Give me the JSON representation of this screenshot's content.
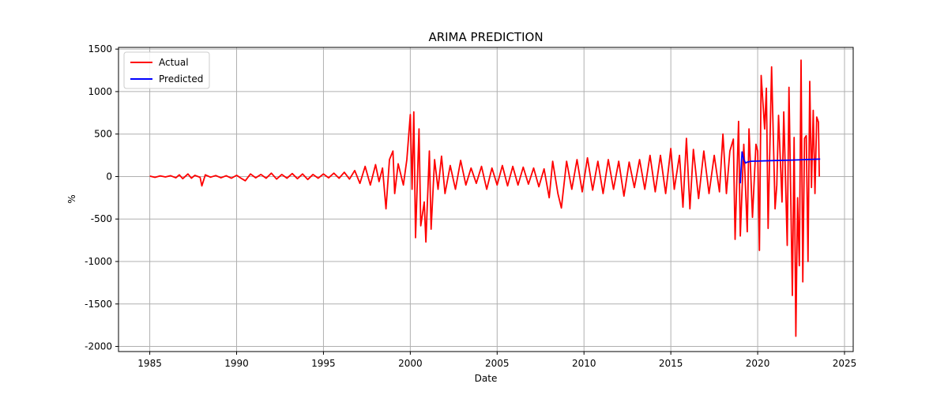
{
  "chart_data": {
    "type": "line",
    "title": "ARIMA PREDICTION",
    "xlabel": "Date",
    "ylabel": "%",
    "xlim": [
      1983.2,
      2025.5
    ],
    "ylim": [
      -2060,
      1520
    ],
    "x_ticks": [
      1985,
      1990,
      1995,
      2000,
      2005,
      2010,
      2015,
      2020,
      2025
    ],
    "y_ticks": [
      -2000,
      -1500,
      -1000,
      -500,
      0,
      500,
      1000,
      1500
    ],
    "grid": true,
    "legend_position": "top-left",
    "series": [
      {
        "name": "Actual",
        "color": "#ff0000",
        "points": [
          [
            1985.0,
            5
          ],
          [
            1985.3,
            -10
          ],
          [
            1985.6,
            8
          ],
          [
            1985.9,
            -5
          ],
          [
            1986.2,
            10
          ],
          [
            1986.5,
            -15
          ],
          [
            1986.7,
            20
          ],
          [
            1986.9,
            -25
          ],
          [
            1987.2,
            30
          ],
          [
            1987.4,
            -20
          ],
          [
            1987.6,
            15
          ],
          [
            1987.9,
            -10
          ],
          [
            1988.0,
            -110
          ],
          [
            1988.2,
            20
          ],
          [
            1988.5,
            -8
          ],
          [
            1988.8,
            12
          ],
          [
            1989.1,
            -15
          ],
          [
            1989.4,
            10
          ],
          [
            1989.7,
            -20
          ],
          [
            1990.0,
            15
          ],
          [
            1990.3,
            -25
          ],
          [
            1990.5,
            -50
          ],
          [
            1990.8,
            30
          ],
          [
            1991.1,
            -15
          ],
          [
            1991.4,
            25
          ],
          [
            1991.7,
            -20
          ],
          [
            1992.0,
            40
          ],
          [
            1992.3,
            -30
          ],
          [
            1992.6,
            25
          ],
          [
            1992.9,
            -20
          ],
          [
            1993.2,
            35
          ],
          [
            1993.5,
            -25
          ],
          [
            1993.8,
            30
          ],
          [
            1994.1,
            -35
          ],
          [
            1994.4,
            25
          ],
          [
            1994.7,
            -20
          ],
          [
            1995.0,
            30
          ],
          [
            1995.3,
            -15
          ],
          [
            1995.6,
            40
          ],
          [
            1995.9,
            -20
          ],
          [
            1996.2,
            50
          ],
          [
            1996.5,
            -30
          ],
          [
            1996.8,
            70
          ],
          [
            1997.1,
            -80
          ],
          [
            1997.4,
            120
          ],
          [
            1997.7,
            -100
          ],
          [
            1998.0,
            140
          ],
          [
            1998.2,
            -60
          ],
          [
            1998.4,
            100
          ],
          [
            1998.6,
            -380
          ],
          [
            1998.8,
            200
          ],
          [
            1999.0,
            300
          ],
          [
            1999.1,
            -200
          ],
          [
            1999.3,
            150
          ],
          [
            1999.6,
            -100
          ],
          [
            1999.8,
            200
          ],
          [
            2000.0,
            730
          ],
          [
            2000.1,
            -150
          ],
          [
            2000.2,
            760
          ],
          [
            2000.3,
            -720
          ],
          [
            2000.5,
            560
          ],
          [
            2000.6,
            -580
          ],
          [
            2000.8,
            -300
          ],
          [
            2000.9,
            -770
          ],
          [
            2001.1,
            300
          ],
          [
            2001.2,
            -620
          ],
          [
            2001.4,
            200
          ],
          [
            2001.6,
            -150
          ],
          [
            2001.8,
            240
          ],
          [
            2002.0,
            -200
          ],
          [
            2002.3,
            130
          ],
          [
            2002.6,
            -150
          ],
          [
            2002.9,
            190
          ],
          [
            2003.2,
            -100
          ],
          [
            2003.5,
            100
          ],
          [
            2003.8,
            -80
          ],
          [
            2004.1,
            120
          ],
          [
            2004.4,
            -150
          ],
          [
            2004.7,
            100
          ],
          [
            2005.0,
            -100
          ],
          [
            2005.3,
            130
          ],
          [
            2005.6,
            -110
          ],
          [
            2005.9,
            120
          ],
          [
            2006.2,
            -100
          ],
          [
            2006.5,
            110
          ],
          [
            2006.8,
            -90
          ],
          [
            2007.1,
            100
          ],
          [
            2007.4,
            -120
          ],
          [
            2007.7,
            90
          ],
          [
            2008.0,
            -250
          ],
          [
            2008.2,
            180
          ],
          [
            2008.5,
            -200
          ],
          [
            2008.7,
            -370
          ],
          [
            2009.0,
            180
          ],
          [
            2009.3,
            -150
          ],
          [
            2009.6,
            200
          ],
          [
            2009.9,
            -180
          ],
          [
            2010.2,
            220
          ],
          [
            2010.5,
            -160
          ],
          [
            2010.8,
            180
          ],
          [
            2011.1,
            -200
          ],
          [
            2011.4,
            200
          ],
          [
            2011.7,
            -150
          ],
          [
            2012.0,
            180
          ],
          [
            2012.3,
            -230
          ],
          [
            2012.6,
            170
          ],
          [
            2012.9,
            -130
          ],
          [
            2013.2,
            200
          ],
          [
            2013.5,
            -150
          ],
          [
            2013.8,
            250
          ],
          [
            2014.1,
            -180
          ],
          [
            2014.4,
            250
          ],
          [
            2014.7,
            -200
          ],
          [
            2015.0,
            330
          ],
          [
            2015.2,
            -150
          ],
          [
            2015.5,
            250
          ],
          [
            2015.7,
            -360
          ],
          [
            2015.9,
            450
          ],
          [
            2016.1,
            -380
          ],
          [
            2016.3,
            320
          ],
          [
            2016.6,
            -260
          ],
          [
            2016.9,
            300
          ],
          [
            2017.2,
            -200
          ],
          [
            2017.5,
            250
          ],
          [
            2017.8,
            -180
          ],
          [
            2018.0,
            500
          ],
          [
            2018.2,
            -200
          ],
          [
            2018.4,
            300
          ],
          [
            2018.6,
            440
          ],
          [
            2018.7,
            -740
          ],
          [
            2018.9,
            650
          ],
          [
            2019.0,
            -700
          ],
          [
            2019.2,
            380
          ],
          [
            2019.4,
            -650
          ],
          [
            2019.5,
            560
          ],
          [
            2019.7,
            -480
          ],
          [
            2019.9,
            380
          ],
          [
            2020.0,
            300
          ],
          [
            2020.1,
            -870
          ],
          [
            2020.2,
            1190
          ],
          [
            2020.4,
            560
          ],
          [
            2020.5,
            1040
          ],
          [
            2020.6,
            -610
          ],
          [
            2020.8,
            1290
          ],
          [
            2021.0,
            -380
          ],
          [
            2021.1,
            -100
          ],
          [
            2021.2,
            720
          ],
          [
            2021.4,
            -300
          ],
          [
            2021.5,
            760
          ],
          [
            2021.7,
            -810
          ],
          [
            2021.8,
            1050
          ],
          [
            2022.0,
            -1400
          ],
          [
            2022.1,
            460
          ],
          [
            2022.2,
            -1880
          ],
          [
            2022.3,
            -250
          ],
          [
            2022.4,
            -1050
          ],
          [
            2022.5,
            1370
          ],
          [
            2022.6,
            -1240
          ],
          [
            2022.7,
            450
          ],
          [
            2022.8,
            480
          ],
          [
            2022.9,
            -1000
          ],
          [
            2023.0,
            1120
          ],
          [
            2023.1,
            -130
          ],
          [
            2023.2,
            780
          ],
          [
            2023.3,
            -200
          ],
          [
            2023.4,
            700
          ],
          [
            2023.5,
            640
          ],
          [
            2023.55,
            0
          ]
        ]
      },
      {
        "name": "Predicted",
        "color": "#0000ff",
        "points": [
          [
            2019.0,
            -80
          ],
          [
            2019.1,
            290
          ],
          [
            2019.2,
            200
          ],
          [
            2019.3,
            160
          ],
          [
            2019.4,
            170
          ],
          [
            2019.6,
            180
          ],
          [
            2020.0,
            182
          ],
          [
            2021.0,
            188
          ],
          [
            2022.0,
            194
          ],
          [
            2023.0,
            201
          ],
          [
            2023.6,
            205
          ]
        ]
      }
    ]
  }
}
